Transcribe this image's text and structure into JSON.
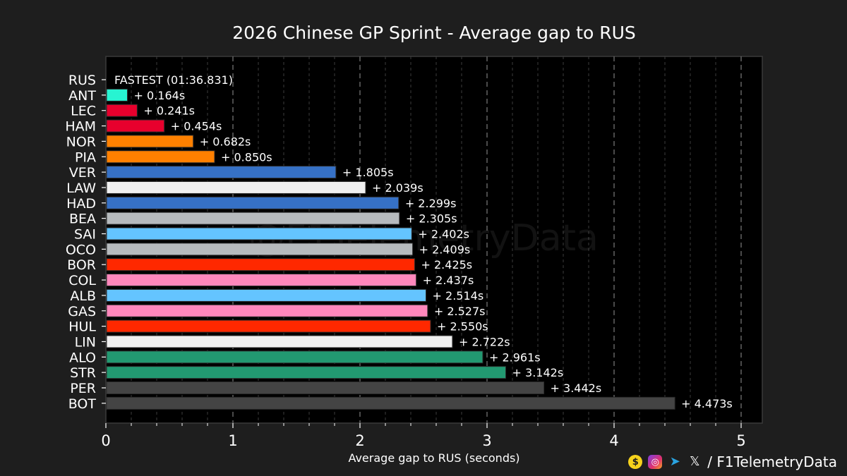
{
  "chart_data": {
    "type": "bar",
    "orientation": "horizontal",
    "title": "2026 Chinese GP Sprint - Average gap to RUS",
    "xlabel": "Average gap to RUS (seconds)",
    "ylabel": "",
    "xlim": [
      0,
      5.2
    ],
    "xticks": [
      "0",
      "1",
      "2",
      "3",
      "4",
      "5"
    ],
    "grid": "vertical dashed",
    "categories": [
      "RUS",
      "ANT",
      "LEC",
      "HAM",
      "NOR",
      "PIA",
      "VER",
      "LAW",
      "HAD",
      "BEA",
      "SAI",
      "OCO",
      "BOR",
      "COL",
      "ALB",
      "GAS",
      "HUL",
      "LIN",
      "ALO",
      "STR",
      "PER",
      "BOT"
    ],
    "values": [
      0,
      0.164,
      0.241,
      0.454,
      0.682,
      0.85,
      1.805,
      2.039,
      2.299,
      2.305,
      2.402,
      2.409,
      2.425,
      2.437,
      2.514,
      2.527,
      2.55,
      2.722,
      2.961,
      3.142,
      3.442,
      4.473
    ],
    "value_labels": [
      "FASTEST (01:36.831)",
      "+ 0.164s",
      "+ 0.241s",
      "+ 0.454s",
      "+ 0.682s",
      "+ 0.850s",
      "+ 1.805s",
      "+ 2.039s",
      "+ 2.299s",
      "+ 2.305s",
      "+ 2.402s",
      "+ 2.409s",
      "+ 2.425s",
      "+ 2.437s",
      "+ 2.514s",
      "+ 2.527s",
      "+ 2.550s",
      "+ 2.722s",
      "+ 2.961s",
      "+ 3.142s",
      "+ 3.442s",
      "+ 4.473s"
    ],
    "colors": [
      "#27f4d2",
      "#27f4d2",
      "#e8002d",
      "#e8002d",
      "#ff8000",
      "#ff8000",
      "#3671c6",
      "#f0f0f0",
      "#3671c6",
      "#b6babd",
      "#64c4ff",
      "#b6babd",
      "#ff2800",
      "#ff87bc",
      "#64c4ff",
      "#ff87bc",
      "#ff2800",
      "#f0f0f0",
      "#229971",
      "#229971",
      "#444444",
      "#444444"
    ]
  },
  "watermark": "@F1TelemetryData",
  "footer": {
    "handle": "/ F1TelemetryData",
    "icons": [
      "tip-icon",
      "instagram-icon",
      "telegram-icon",
      "x-icon"
    ]
  }
}
